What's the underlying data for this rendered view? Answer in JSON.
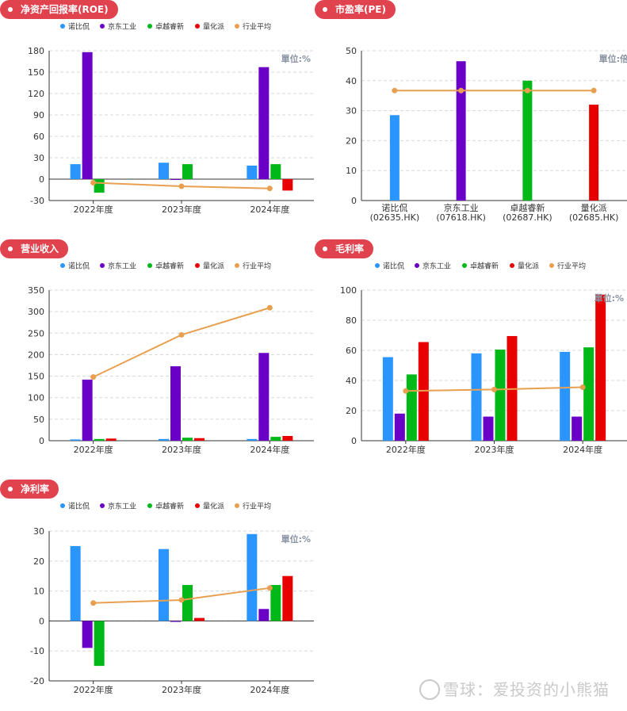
{
  "colors": {
    "nuobi": "#2b95ff",
    "jingdong": "#6a00c8",
    "zhuoyue": "#00b817",
    "lianghua": "#e80000",
    "avg": "#e8a050",
    "title_bg": "#e0424e"
  },
  "legend": [
    "诺比侃",
    "京东工业",
    "卓越睿新",
    "量化派",
    "行业平均"
  ],
  "watermark": "雪球：爱投资的小熊猫",
  "chart_data": [
    {
      "id": "roe",
      "type": "bar",
      "title": "净资产回报率(ROE)",
      "unit": "單位:%",
      "categories": [
        "2022年度",
        "2023年度",
        "2024年度"
      ],
      "ylim": [
        -30,
        180
      ],
      "yticks": [
        -30,
        0,
        30,
        60,
        90,
        120,
        150,
        180
      ],
      "series": [
        {
          "name": "诺比侃",
          "values": [
            21,
            23,
            19
          ]
        },
        {
          "name": "京东工业",
          "values": [
            178,
            -1,
            157
          ]
        },
        {
          "name": "卓越睿新",
          "values": [
            -19,
            21,
            21
          ]
        },
        {
          "name": "量化派",
          "values": [
            null,
            null,
            -16
          ]
        }
      ],
      "avg": {
        "name": "行业平均",
        "values": [
          -5,
          -10,
          -13
        ]
      }
    },
    {
      "id": "pe",
      "type": "bar",
      "title": "市盈率(PE)",
      "unit": "單位:倍",
      "categories": [
        "诺比侃",
        "京东工业",
        "卓越睿新",
        "量化派"
      ],
      "subcategories": [
        "(02635.HK)",
        "(07618.HK)",
        "(02687.HK)",
        "(02685.HK)"
      ],
      "ylim": [
        0,
        50
      ],
      "yticks": [
        0,
        10,
        20,
        30,
        40,
        50
      ],
      "values": [
        28.5,
        46.5,
        40,
        32
      ],
      "avg": {
        "name": "行业平均",
        "values": [
          36.7,
          36.7,
          36.7,
          36.7
        ]
      }
    },
    {
      "id": "revenue",
      "type": "bar",
      "title": "营业收入",
      "unit": "",
      "categories": [
        "2022年度",
        "2023年度",
        "2024年度"
      ],
      "ylim": [
        0,
        350
      ],
      "yticks": [
        0,
        50,
        100,
        150,
        200,
        250,
        300,
        350
      ],
      "series": [
        {
          "name": "诺比侃",
          "values": [
            3,
            4,
            4
          ]
        },
        {
          "name": "京东工业",
          "values": [
            142,
            173,
            204
          ]
        },
        {
          "name": "卓越睿新",
          "values": [
            4,
            7,
            9
          ]
        },
        {
          "name": "量化派",
          "values": [
            5,
            6,
            11
          ]
        }
      ],
      "avg": {
        "name": "行业平均",
        "values": [
          148,
          246,
          309
        ]
      }
    },
    {
      "id": "gross",
      "type": "bar",
      "title": "毛利率",
      "unit": "單位:%",
      "categories": [
        "2022年度",
        "2023年度",
        "2024年度"
      ],
      "ylim": [
        0,
        100
      ],
      "yticks": [
        0,
        20,
        40,
        60,
        80,
        100
      ],
      "series": [
        {
          "name": "诺比侃",
          "values": [
            55.5,
            58,
            59
          ]
        },
        {
          "name": "京东工业",
          "values": [
            18,
            16,
            16
          ]
        },
        {
          "name": "卓越睿新",
          "values": [
            44,
            60.5,
            62
          ]
        },
        {
          "name": "量化派",
          "values": [
            65.5,
            69.5,
            97
          ]
        }
      ],
      "avg": {
        "name": "行业平均",
        "values": [
          33,
          34,
          35.5
        ]
      }
    },
    {
      "id": "net",
      "type": "bar",
      "title": "净利率",
      "unit": "單位:%",
      "categories": [
        "2022年度",
        "2023年度",
        "2024年度"
      ],
      "ylim": [
        -20,
        30
      ],
      "yticks": [
        -20,
        -10,
        0,
        10,
        20,
        30
      ],
      "series": [
        {
          "name": "诺比侃",
          "values": [
            25,
            24,
            29
          ]
        },
        {
          "name": "京东工业",
          "values": [
            -9,
            -0.3,
            4
          ]
        },
        {
          "name": "卓越睿新",
          "values": [
            -15,
            12,
            12
          ]
        },
        {
          "name": "量化派",
          "values": [
            null,
            1,
            15
          ]
        }
      ],
      "avg": {
        "name": "行业平均",
        "values": [
          6,
          7,
          11
        ]
      }
    }
  ]
}
